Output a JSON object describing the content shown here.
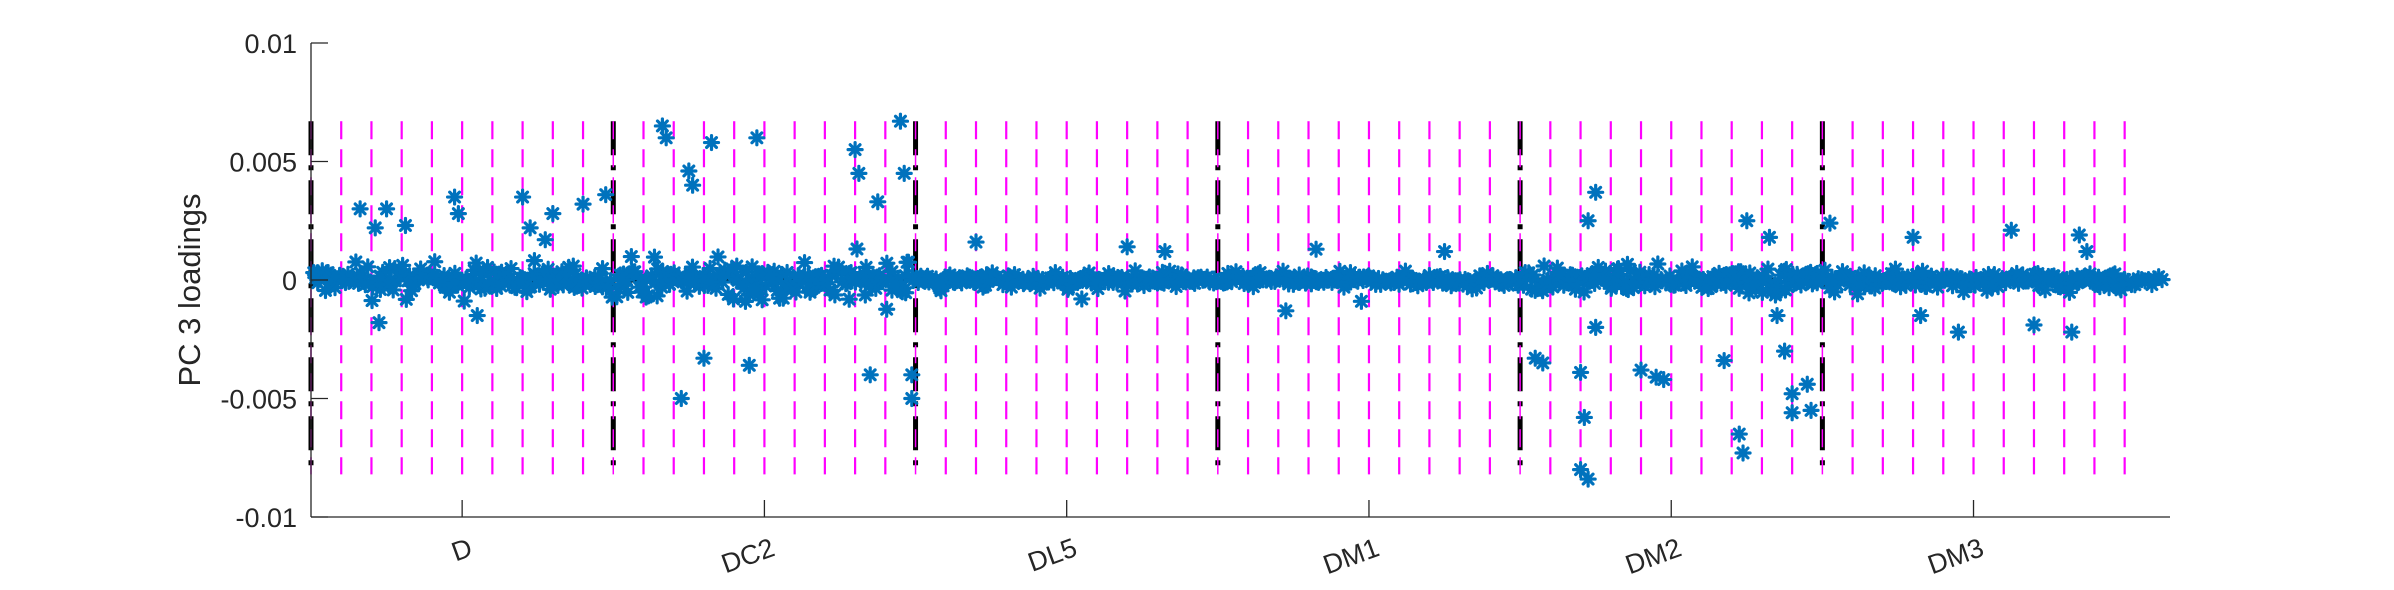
{
  "chart_data": {
    "type": "scatter",
    "title": "",
    "xlabel": "",
    "ylabel": "PC 3 loadings",
    "ylim": [
      -0.01,
      0.01
    ],
    "xlim": [
      0,
      246
    ],
    "yticks": [
      -0.01,
      -0.005,
      0,
      0.005,
      0.01
    ],
    "ytick_labels": [
      "-0.01",
      "-0.005",
      "0",
      "0.005",
      "0.01"
    ],
    "xtick_labels": [
      "D",
      "DC2",
      "DL5",
      "DM1",
      "DM2",
      "DM3"
    ],
    "xticks": [
      20,
      60,
      100,
      140,
      180,
      220
    ],
    "xtick_rotation": -20,
    "group_boundaries": [
      0,
      40,
      80,
      120,
      160,
      200
    ],
    "group_size": 40,
    "subgroup_size": 4,
    "subgroups_total": 60,
    "guide_line_ylim": [
      -0.0082,
      0.0067
    ],
    "marker": "asterisk",
    "colors": {
      "points": "#0072BD",
      "guides": "#FF00FF",
      "boundaries": "#000000",
      "zero_line": "#000000",
      "axes": "#262626"
    },
    "series": [
      {
        "name": "",
        "color": "#0072BD",
        "points_per_unit": 4,
        "unit_count": 240,
        "groups": [
          {
            "label": "D",
            "spread": 0.0012,
            "outliers": [
              [
                6.5,
                0.003
              ],
              [
                8.5,
                0.0022
              ],
              [
                10,
                0.003
              ],
              [
                12.5,
                0.0023
              ],
              [
                19,
                0.0035
              ],
              [
                19.5,
                0.0028
              ],
              [
                28,
                0.0035
              ],
              [
                29,
                0.0022
              ],
              [
                31,
                0.0017
              ],
              [
                32,
                0.0028
              ],
              [
                36,
                0.0032
              ],
              [
                39,
                0.0036
              ],
              [
                9,
                -0.0018
              ],
              [
                22,
                -0.0015
              ]
            ]
          },
          {
            "label": "DC2",
            "spread": 0.0016,
            "outliers": [
              [
                46.5,
                0.0065
              ],
              [
                47,
                0.006
              ],
              [
                50,
                0.0046
              ],
              [
                50.5,
                0.004
              ],
              [
                53,
                0.0058
              ],
              [
                59,
                0.006
              ],
              [
                72,
                0.0055
              ],
              [
                72.5,
                0.0045
              ],
              [
                75,
                0.0033
              ],
              [
                78,
                0.0067
              ],
              [
                78.5,
                0.0045
              ],
              [
                49,
                -0.005
              ],
              [
                52,
                -0.0033
              ],
              [
                58,
                -0.0036
              ],
              [
                74,
                -0.004
              ],
              [
                79.5,
                -0.004
              ],
              [
                79.5,
                -0.005
              ]
            ]
          },
          {
            "label": "DL5",
            "spread": 0.0006,
            "outliers": [
              [
                88,
                0.0016
              ],
              [
                108,
                0.0014
              ],
              [
                113,
                0.0012
              ],
              [
                102,
                -0.0008
              ]
            ]
          },
          {
            "label": "DM1",
            "spread": 0.0005,
            "outliers": [
              [
                133,
                0.0013
              ],
              [
                129,
                -0.0013
              ],
              [
                150,
                0.0012
              ],
              [
                139,
                -0.0009
              ]
            ]
          },
          {
            "label": "DM2",
            "spread": 0.0009,
            "outliers": [
              [
                162,
                -0.0033
              ],
              [
                163,
                -0.0035
              ],
              [
                169,
                0.0025
              ],
              [
                170,
                0.0037
              ],
              [
                168,
                -0.0039
              ],
              [
                168.5,
                -0.0058
              ],
              [
                168,
                -0.008
              ],
              [
                169,
                -0.0084
              ],
              [
                170,
                -0.002
              ],
              [
                176,
                -0.0038
              ],
              [
                178,
                -0.0041
              ],
              [
                179,
                -0.0042
              ],
              [
                187,
                -0.0034
              ],
              [
                189,
                -0.0065
              ],
              [
                189.5,
                -0.0073
              ],
              [
                190,
                0.0025
              ],
              [
                193,
                0.0018
              ],
              [
                194,
                -0.0015
              ],
              [
                195,
                -0.003
              ],
              [
                196,
                -0.0048
              ],
              [
                196,
                -0.0056
              ],
              [
                198,
                -0.0044
              ],
              [
                198.5,
                -0.0055
              ]
            ]
          },
          {
            "label": "DM3",
            "spread": 0.0007,
            "outliers": [
              [
                201,
                0.0024
              ],
              [
                212,
                0.0018
              ],
              [
                213,
                -0.0015
              ],
              [
                218,
                -0.0022
              ],
              [
                225,
                0.0021
              ],
              [
                228,
                -0.0019
              ],
              [
                233,
                -0.0022
              ],
              [
                234,
                0.0019
              ],
              [
                235,
                0.0012
              ]
            ]
          }
        ]
      }
    ],
    "grid": false,
    "legend": "none"
  }
}
